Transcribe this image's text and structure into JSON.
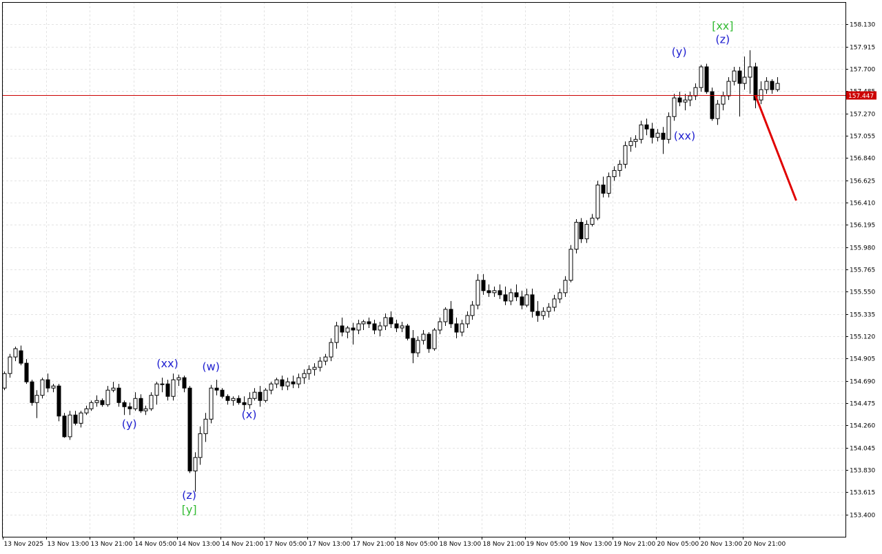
{
  "chart_data": {
    "type": "candlestick",
    "colors": {
      "background": "#ffffff",
      "grid": "#e3e3e3",
      "axis": "#000000",
      "candle_up": "#ffffff",
      "candle_down": "#000000",
      "current_price_line": "#cc0000",
      "forecast_line": "#e00000",
      "wave_label_blue": "#2020d0",
      "wave_label_green": "#33bb33"
    },
    "y_axis": {
      "range": [
        153.185,
        158.345
      ],
      "ticks": [
        "158.130",
        "157.915",
        "157.700",
        "157.485",
        "157.270",
        "157.055",
        "156.840",
        "156.625",
        "156.410",
        "156.195",
        "155.980",
        "155.765",
        "155.550",
        "155.335",
        "155.120",
        "154.905",
        "154.690",
        "154.475",
        "154.260",
        "154.045",
        "153.830",
        "153.615",
        "153.400"
      ]
    },
    "x_axis": {
      "ticks": [
        {
          "label": "13 Nov 2025",
          "bar": 0
        },
        {
          "label": "13 Nov 13:00",
          "bar": 8
        },
        {
          "label": "13 Nov 21:00",
          "bar": 16
        },
        {
          "label": "14 Nov 05:00",
          "bar": 24
        },
        {
          "label": "14 Nov 13:00",
          "bar": 32
        },
        {
          "label": "14 Nov 21:00",
          "bar": 40
        },
        {
          "label": "17 Nov 05:00",
          "bar": 48
        },
        {
          "label": "17 Nov 13:00",
          "bar": 56
        },
        {
          "label": "17 Nov 21:00",
          "bar": 64
        },
        {
          "label": "18 Nov 05:00",
          "bar": 72
        },
        {
          "label": "18 Nov 13:00",
          "bar": 80
        },
        {
          "label": "18 Nov 21:00",
          "bar": 88
        },
        {
          "label": "19 Nov 05:00",
          "bar": 96
        },
        {
          "label": "19 Nov 13:00",
          "bar": 104
        },
        {
          "label": "19 Nov 21:00",
          "bar": 112
        },
        {
          "label": "20 Nov 05:00",
          "bar": 120
        },
        {
          "label": "20 Nov 13:00",
          "bar": 128
        },
        {
          "label": "20 Nov 21:00",
          "bar": 136
        }
      ]
    },
    "current_price": {
      "value": 157.447,
      "label": "157.447"
    },
    "candles": [
      [
        154.62,
        154.78,
        154.6,
        154.76
      ],
      [
        154.76,
        154.95,
        154.72,
        154.92
      ],
      [
        154.92,
        155.02,
        154.88,
        155.0
      ],
      [
        154.98,
        155.03,
        154.84,
        154.86
      ],
      [
        154.86,
        154.9,
        154.66,
        154.68
      ],
      [
        154.68,
        154.7,
        154.45,
        154.48
      ],
      [
        154.48,
        154.6,
        154.33,
        154.55
      ],
      [
        154.55,
        154.72,
        154.52,
        154.7
      ],
      [
        154.7,
        154.76,
        154.58,
        154.62
      ],
      [
        154.62,
        154.66,
        154.58,
        154.64
      ],
      [
        154.64,
        154.66,
        154.3,
        154.35
      ],
      [
        154.35,
        154.38,
        154.14,
        154.15
      ],
      [
        154.15,
        154.4,
        154.12,
        154.36
      ],
      [
        154.36,
        154.4,
        154.26,
        154.28
      ],
      [
        154.28,
        154.4,
        154.24,
        154.38
      ],
      [
        154.38,
        154.45,
        154.36,
        154.42
      ],
      [
        154.42,
        154.5,
        154.4,
        154.48
      ],
      [
        154.48,
        154.55,
        154.44,
        154.5
      ],
      [
        154.5,
        154.52,
        154.44,
        154.46
      ],
      [
        154.46,
        154.64,
        154.44,
        154.6
      ],
      [
        154.6,
        154.68,
        154.58,
        154.62
      ],
      [
        154.62,
        154.66,
        154.44,
        154.48
      ],
      [
        154.48,
        154.5,
        154.36,
        154.44
      ],
      [
        154.44,
        154.48,
        154.36,
        154.42
      ],
      [
        154.42,
        154.58,
        154.4,
        154.52
      ],
      [
        154.52,
        154.56,
        154.38,
        154.4
      ],
      [
        154.4,
        154.45,
        154.36,
        154.42
      ],
      [
        154.42,
        154.58,
        154.4,
        154.55
      ],
      [
        154.55,
        154.68,
        154.46,
        154.66
      ],
      [
        154.66,
        154.72,
        154.58,
        154.66
      ],
      [
        154.66,
        154.7,
        154.5,
        154.54
      ],
      [
        154.54,
        154.76,
        154.5,
        154.7
      ],
      [
        154.7,
        154.75,
        154.64,
        154.72
      ],
      [
        154.72,
        154.74,
        154.58,
        154.62
      ],
      [
        154.62,
        154.64,
        153.8,
        153.82
      ],
      [
        153.82,
        154.0,
        153.62,
        153.95
      ],
      [
        153.95,
        154.25,
        153.88,
        154.18
      ],
      [
        154.18,
        154.38,
        154.1,
        154.32
      ],
      [
        154.32,
        154.65,
        154.28,
        154.62
      ],
      [
        154.62,
        154.7,
        154.55,
        154.6
      ],
      [
        154.6,
        154.62,
        154.52,
        154.54
      ],
      [
        154.54,
        154.56,
        154.46,
        154.5
      ],
      [
        154.5,
        154.54,
        154.45,
        154.52
      ],
      [
        154.52,
        154.55,
        154.46,
        154.48
      ],
      [
        154.48,
        154.54,
        154.4,
        154.46
      ],
      [
        154.46,
        154.58,
        154.42,
        154.52
      ],
      [
        154.52,
        154.62,
        154.5,
        154.58
      ],
      [
        154.58,
        154.64,
        154.44,
        154.5
      ],
      [
        154.5,
        154.62,
        154.48,
        154.6
      ],
      [
        154.6,
        154.68,
        154.56,
        154.66
      ],
      [
        154.66,
        154.72,
        154.62,
        154.7
      ],
      [
        154.7,
        154.74,
        154.6,
        154.64
      ],
      [
        154.64,
        154.72,
        154.6,
        154.68
      ],
      [
        154.68,
        154.74,
        154.62,
        154.66
      ],
      [
        154.66,
        154.76,
        154.62,
        154.72
      ],
      [
        154.72,
        154.8,
        154.66,
        154.76
      ],
      [
        154.76,
        154.84,
        154.7,
        154.8
      ],
      [
        154.8,
        154.86,
        154.74,
        154.82
      ],
      [
        154.82,
        154.92,
        154.78,
        154.88
      ],
      [
        154.88,
        154.95,
        154.84,
        154.92
      ],
      [
        154.92,
        155.1,
        154.88,
        155.06
      ],
      [
        155.06,
        155.26,
        155.0,
        155.22
      ],
      [
        155.22,
        155.3,
        155.12,
        155.16
      ],
      [
        155.16,
        155.22,
        155.1,
        155.2
      ],
      [
        155.2,
        155.25,
        155.04,
        155.18
      ],
      [
        155.18,
        155.28,
        155.14,
        155.24
      ],
      [
        155.24,
        155.28,
        155.18,
        155.26
      ],
      [
        155.26,
        155.3,
        155.2,
        155.24
      ],
      [
        155.24,
        155.28,
        155.14,
        155.18
      ],
      [
        155.18,
        155.26,
        155.12,
        155.22
      ],
      [
        155.22,
        155.34,
        155.18,
        155.3
      ],
      [
        155.3,
        155.36,
        155.2,
        155.24
      ],
      [
        155.24,
        155.28,
        155.16,
        155.2
      ],
      [
        155.2,
        155.26,
        155.16,
        155.22
      ],
      [
        155.22,
        155.24,
        155.08,
        155.1
      ],
      [
        155.1,
        155.18,
        154.86,
        154.96
      ],
      [
        154.96,
        155.12,
        154.92,
        155.08
      ],
      [
        155.08,
        155.18,
        155.04,
        155.14
      ],
      [
        155.14,
        155.16,
        154.96,
        155.0
      ],
      [
        155.0,
        155.2,
        154.98,
        155.18
      ],
      [
        155.18,
        155.3,
        155.14,
        155.26
      ],
      [
        155.26,
        155.4,
        155.22,
        155.38
      ],
      [
        155.38,
        155.46,
        155.2,
        155.24
      ],
      [
        155.24,
        155.3,
        155.1,
        155.16
      ],
      [
        155.16,
        155.28,
        155.12,
        155.24
      ],
      [
        155.24,
        155.36,
        155.2,
        155.32
      ],
      [
        155.32,
        155.46,
        155.28,
        155.42
      ],
      [
        155.42,
        155.72,
        155.38,
        155.66
      ],
      [
        155.66,
        155.72,
        155.52,
        155.56
      ],
      [
        155.56,
        155.62,
        155.5,
        155.54
      ],
      [
        155.54,
        155.6,
        155.5,
        155.56
      ],
      [
        155.56,
        155.62,
        155.48,
        155.52
      ],
      [
        155.52,
        155.6,
        155.42,
        155.46
      ],
      [
        155.46,
        155.58,
        155.42,
        155.54
      ],
      [
        155.54,
        155.62,
        155.46,
        155.5
      ],
      [
        155.5,
        155.56,
        155.38,
        155.42
      ],
      [
        155.42,
        155.58,
        155.4,
        155.52
      ],
      [
        155.52,
        155.58,
        155.3,
        155.36
      ],
      [
        155.36,
        155.46,
        155.26,
        155.32
      ],
      [
        155.32,
        155.4,
        155.28,
        155.36
      ],
      [
        155.36,
        155.44,
        155.3,
        155.4
      ],
      [
        155.4,
        155.52,
        155.36,
        155.48
      ],
      [
        155.48,
        155.58,
        155.44,
        155.54
      ],
      [
        155.54,
        155.7,
        155.5,
        155.66
      ],
      [
        155.66,
        156.0,
        155.64,
        155.96
      ],
      [
        155.96,
        156.25,
        155.92,
        156.22
      ],
      [
        156.22,
        156.26,
        156.02,
        156.06
      ],
      [
        156.06,
        156.24,
        156.02,
        156.2
      ],
      [
        156.2,
        156.3,
        156.18,
        156.26
      ],
      [
        156.26,
        156.62,
        156.24,
        156.58
      ],
      [
        156.58,
        156.66,
        156.46,
        156.5
      ],
      [
        156.5,
        156.7,
        156.46,
        156.66
      ],
      [
        156.66,
        156.76,
        156.62,
        156.72
      ],
      [
        156.72,
        156.82,
        156.66,
        156.78
      ],
      [
        156.78,
        157.0,
        156.74,
        156.96
      ],
      [
        156.96,
        157.04,
        156.9,
        157.0
      ],
      [
        157.0,
        157.06,
        156.94,
        157.02
      ],
      [
        157.02,
        157.2,
        156.98,
        157.16
      ],
      [
        157.16,
        157.22,
        157.06,
        157.12
      ],
      [
        157.12,
        157.18,
        156.98,
        157.04
      ],
      [
        157.04,
        157.12,
        157.0,
        157.08
      ],
      [
        157.08,
        157.14,
        156.88,
        157.02
      ],
      [
        157.02,
        157.28,
        156.98,
        157.24
      ],
      [
        157.24,
        157.46,
        157.2,
        157.42
      ],
      [
        157.42,
        157.48,
        157.34,
        157.38
      ],
      [
        157.38,
        157.46,
        157.3,
        157.4
      ],
      [
        157.4,
        157.48,
        157.34,
        157.44
      ],
      [
        157.44,
        157.56,
        157.4,
        157.52
      ],
      [
        157.52,
        157.74,
        157.48,
        157.72
      ],
      [
        157.72,
        157.75,
        157.46,
        157.48
      ],
      [
        157.48,
        157.52,
        157.2,
        157.22
      ],
      [
        157.22,
        157.4,
        157.16,
        157.36
      ],
      [
        157.36,
        157.48,
        157.3,
        157.44
      ],
      [
        157.44,
        157.62,
        157.4,
        157.58
      ],
      [
        157.58,
        157.72,
        157.54,
        157.68
      ],
      [
        157.68,
        157.72,
        157.24,
        157.56
      ],
      [
        157.56,
        157.82,
        157.5,
        157.62
      ],
      [
        157.62,
        157.88,
        157.46,
        157.72
      ],
      [
        157.72,
        157.76,
        157.32,
        157.4
      ],
      [
        157.4,
        157.58,
        157.36,
        157.5
      ],
      [
        157.5,
        157.62,
        157.46,
        157.58
      ],
      [
        157.58,
        157.6,
        157.46,
        157.5
      ],
      [
        157.5,
        157.62,
        157.48,
        157.56
      ]
    ],
    "wave_labels": [
      {
        "text": "(y)",
        "bar": 23,
        "price": 154.24,
        "color": "blue"
      },
      {
        "text": "(xx)",
        "bar": 30,
        "price": 154.82,
        "color": "blue"
      },
      {
        "text": "(z)",
        "bar": 34,
        "price": 153.55,
        "color": "blue"
      },
      {
        "text": "[y]",
        "bar": 34,
        "price": 153.41,
        "color": "green"
      },
      {
        "text": "(w)",
        "bar": 38,
        "price": 154.79,
        "color": "blue"
      },
      {
        "text": "(x)",
        "bar": 45,
        "price": 154.33,
        "color": "blue"
      },
      {
        "text": "(y)",
        "bar": 124,
        "price": 157.83,
        "color": "blue"
      },
      {
        "text": "(xx)",
        "bar": 125,
        "price": 157.02,
        "color": "blue"
      },
      {
        "text": "(z)",
        "bar": 132,
        "price": 157.95,
        "color": "blue"
      },
      {
        "text": "[xx]",
        "bar": 132,
        "price": 158.08,
        "color": "green"
      }
    ],
    "forecast": {
      "from_bar": 138,
      "from_price": 157.447,
      "to_bar": 145,
      "to_price": 156.43
    }
  }
}
